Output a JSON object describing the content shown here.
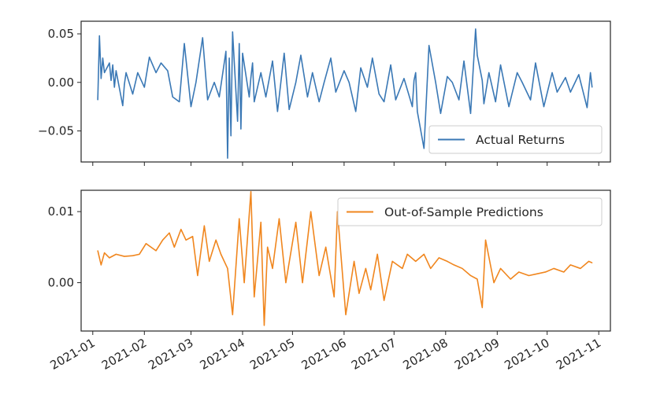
{
  "chart_data": [
    {
      "type": "line",
      "legend_position": "lower-right",
      "grid": false,
      "xlim": [
        "2020-12-25",
        "2021-11-08"
      ],
      "ylim": [
        -0.082,
        0.063
      ],
      "yticks": [
        {
          "value": -0.05,
          "label": "−0.05"
        },
        {
          "value": 0.0,
          "label": "0.00"
        },
        {
          "value": 0.05,
          "label": "0.05"
        }
      ],
      "series": [
        {
          "name": "Actual Returns",
          "color": "#3a78b5",
          "x": [
            "2021-01-04",
            "2021-01-05",
            "2021-01-06",
            "2021-01-07",
            "2021-01-08",
            "2021-01-11",
            "2021-01-12",
            "2021-01-13",
            "2021-01-14",
            "2021-01-15",
            "2021-01-19",
            "2021-01-20",
            "2021-01-21",
            "2021-01-25",
            "2021-01-28",
            "2021-02-01",
            "2021-02-04",
            "2021-02-08",
            "2021-02-11",
            "2021-02-15",
            "2021-02-18",
            "2021-02-22",
            "2021-02-25",
            "2021-03-01",
            "2021-03-04",
            "2021-03-08",
            "2021-03-11",
            "2021-03-15",
            "2021-03-18",
            "2021-03-22",
            "2021-03-23",
            "2021-03-24",
            "2021-03-25",
            "2021-03-26",
            "2021-03-29",
            "2021-03-30",
            "2021-03-31",
            "2021-04-01",
            "2021-04-05",
            "2021-04-06",
            "2021-04-07",
            "2021-04-08",
            "2021-04-12",
            "2021-04-15",
            "2021-04-19",
            "2021-04-22",
            "2021-04-26",
            "2021-04-29",
            "2021-05-03",
            "2021-05-06",
            "2021-05-10",
            "2021-05-13",
            "2021-05-17",
            "2021-05-20",
            "2021-05-24",
            "2021-05-27",
            "2021-06-01",
            "2021-06-04",
            "2021-06-08",
            "2021-06-11",
            "2021-06-15",
            "2021-06-18",
            "2021-06-22",
            "2021-06-25",
            "2021-06-29",
            "2021-07-02",
            "2021-07-07",
            "2021-07-12",
            "2021-07-13",
            "2021-07-14",
            "2021-07-15",
            "2021-07-19",
            "2021-07-22",
            "2021-07-26",
            "2021-07-29",
            "2021-08-02",
            "2021-08-05",
            "2021-08-09",
            "2021-08-12",
            "2021-08-16",
            "2021-08-19",
            "2021-08-20",
            "2021-08-23",
            "2021-08-24",
            "2021-08-27",
            "2021-08-31",
            "2021-09-03",
            "2021-09-08",
            "2021-09-13",
            "2021-09-16",
            "2021-09-21",
            "2021-09-24",
            "2021-09-29",
            "2021-10-04",
            "2021-10-07",
            "2021-10-12",
            "2021-10-15",
            "2021-10-20",
            "2021-10-25",
            "2021-10-27",
            "2021-10-28"
          ],
          "values": [
            -0.018,
            0.048,
            0.004,
            0.025,
            0.01,
            0.02,
            0.002,
            0.018,
            -0.005,
            0.012,
            -0.024,
            -0.002,
            0.01,
            -0.012,
            0.01,
            -0.005,
            0.026,
            0.01,
            0.02,
            0.012,
            -0.015,
            -0.02,
            0.04,
            -0.025,
            0.0,
            0.046,
            -0.018,
            0.0,
            -0.015,
            0.032,
            -0.078,
            0.025,
            -0.055,
            0.052,
            -0.04,
            0.04,
            -0.048,
            0.03,
            -0.015,
            0.005,
            0.02,
            -0.02,
            0.01,
            -0.015,
            0.022,
            -0.03,
            0.03,
            -0.028,
            0.0,
            0.028,
            -0.015,
            0.01,
            -0.02,
            0.0,
            0.025,
            -0.01,
            0.012,
            0.0,
            -0.03,
            0.015,
            -0.005,
            0.025,
            -0.012,
            -0.02,
            0.018,
            -0.018,
            0.004,
            -0.025,
            0.002,
            0.01,
            -0.03,
            -0.068,
            0.038,
            0.0,
            -0.032,
            0.006,
            0.0,
            -0.018,
            0.022,
            -0.032,
            0.055,
            0.028,
            0.002,
            -0.022,
            0.01,
            -0.02,
            0.018,
            -0.025,
            0.01,
            0.0,
            -0.018,
            0.02,
            -0.025,
            0.01,
            -0.01,
            0.005,
            -0.01,
            0.008,
            -0.026,
            0.01,
            -0.005
          ]
        }
      ]
    },
    {
      "type": "line",
      "legend_position": "upper-right",
      "grid": false,
      "xlim": [
        "2020-12-25",
        "2021-11-08"
      ],
      "ylim": [
        -0.0068,
        0.013
      ],
      "yticks": [
        {
          "value": 0.0,
          "label": "0.00"
        },
        {
          "value": 0.01,
          "label": "0.01"
        }
      ],
      "xticks": [
        {
          "date": "2021-01-01",
          "label": "2021-01"
        },
        {
          "date": "2021-02-01",
          "label": "2021-02"
        },
        {
          "date": "2021-03-01",
          "label": "2021-03"
        },
        {
          "date": "2021-04-01",
          "label": "2021-04"
        },
        {
          "date": "2021-05-01",
          "label": "2021-05"
        },
        {
          "date": "2021-06-01",
          "label": "2021-06"
        },
        {
          "date": "2021-07-01",
          "label": "2021-07"
        },
        {
          "date": "2021-08-01",
          "label": "2021-08"
        },
        {
          "date": "2021-09-01",
          "label": "2021-09"
        },
        {
          "date": "2021-10-01",
          "label": "2021-10"
        },
        {
          "date": "2021-11-01",
          "label": "2021-11"
        }
      ],
      "series": [
        {
          "name": "Out-of-Sample Predictions",
          "color": "#f0861e",
          "x": [
            "2021-01-04",
            "2021-01-06",
            "2021-01-08",
            "2021-01-11",
            "2021-01-15",
            "2021-01-20",
            "2021-01-25",
            "2021-01-29",
            "2021-02-02",
            "2021-02-08",
            "2021-02-12",
            "2021-02-16",
            "2021-02-19",
            "2021-02-23",
            "2021-02-26",
            "2021-03-02",
            "2021-03-05",
            "2021-03-09",
            "2021-03-12",
            "2021-03-16",
            "2021-03-19",
            "2021-03-23",
            "2021-03-26",
            "2021-03-30",
            "2021-04-02",
            "2021-04-06",
            "2021-04-08",
            "2021-04-12",
            "2021-04-14",
            "2021-04-16",
            "2021-04-19",
            "2021-04-23",
            "2021-04-27",
            "2021-05-03",
            "2021-05-07",
            "2021-05-12",
            "2021-05-17",
            "2021-05-21",
            "2021-05-26",
            "2021-05-28",
            "2021-06-02",
            "2021-06-07",
            "2021-06-10",
            "2021-06-14",
            "2021-06-17",
            "2021-06-21",
            "2021-06-25",
            "2021-06-30",
            "2021-07-06",
            "2021-07-09",
            "2021-07-14",
            "2021-07-19",
            "2021-07-23",
            "2021-07-28",
            "2021-08-02",
            "2021-08-06",
            "2021-08-11",
            "2021-08-16",
            "2021-08-20",
            "2021-08-23",
            "2021-08-25",
            "2021-08-30",
            "2021-09-03",
            "2021-09-09",
            "2021-09-14",
            "2021-09-20",
            "2021-09-24",
            "2021-09-30",
            "2021-10-05",
            "2021-10-11",
            "2021-10-15",
            "2021-10-21",
            "2021-10-26",
            "2021-10-28"
          ],
          "values": [
            0.0045,
            0.0025,
            0.0042,
            0.0035,
            0.004,
            0.0037,
            0.0038,
            0.004,
            0.0055,
            0.0045,
            0.006,
            0.007,
            0.005,
            0.0075,
            0.006,
            0.0065,
            0.001,
            0.008,
            0.003,
            0.006,
            0.004,
            0.002,
            -0.0045,
            0.009,
            0.0,
            0.0128,
            -0.002,
            0.0085,
            -0.006,
            0.005,
            0.002,
            0.009,
            0.0,
            0.0085,
            0.0,
            0.01,
            0.001,
            0.005,
            -0.002,
            0.01,
            -0.0045,
            0.003,
            -0.0015,
            0.002,
            -0.001,
            0.004,
            -0.0025,
            0.003,
            0.002,
            0.004,
            0.003,
            0.004,
            0.002,
            0.0035,
            0.003,
            0.0025,
            0.002,
            0.001,
            0.0005,
            -0.0035,
            0.006,
            0.0,
            0.002,
            0.0005,
            0.0015,
            0.001,
            0.0012,
            0.0015,
            0.002,
            0.0015,
            0.0025,
            0.002,
            0.003,
            0.0028
          ]
        }
      ]
    }
  ]
}
